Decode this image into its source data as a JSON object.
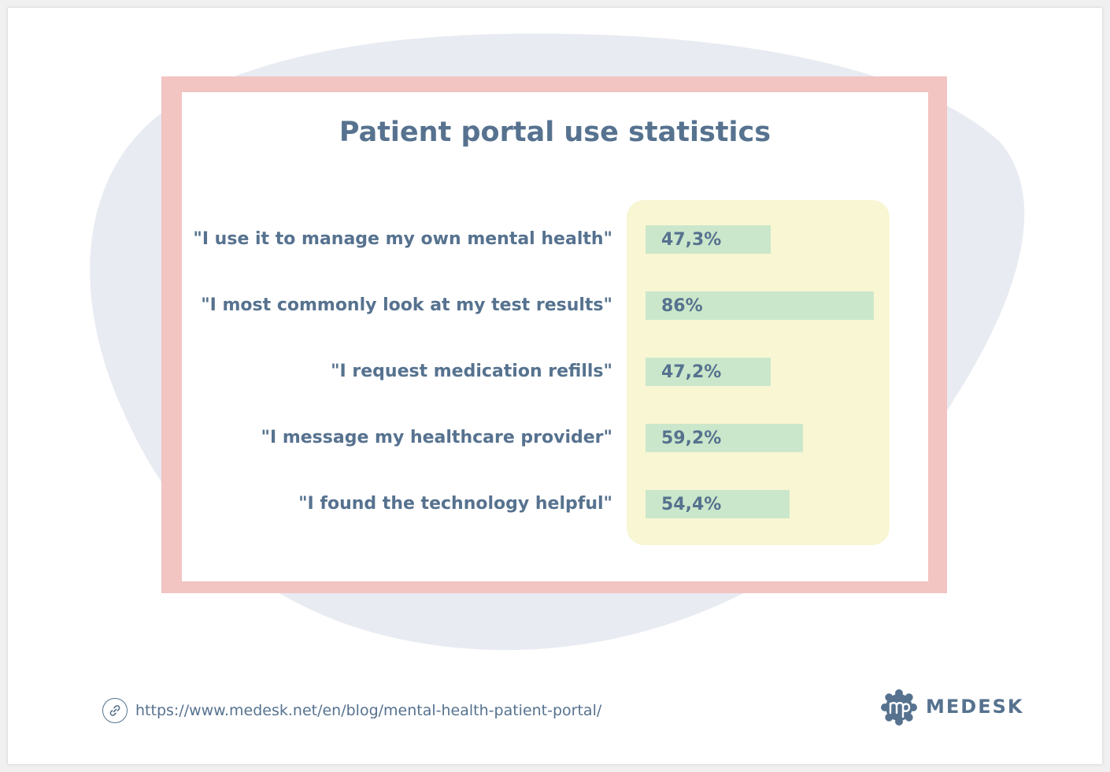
{
  "chart_data": {
    "type": "bar",
    "orientation": "horizontal",
    "title": "Patient portal use statistics",
    "categories": [
      "\"I use it to manage my own mental health\"",
      "\"I most commonly look at my test results\"",
      "\"I request medication refills\"",
      "\"I message my healthcare provider\"",
      "\"I found the technology helpful\""
    ],
    "values": [
      47.3,
      86,
      47.2,
      59.2,
      54.4
    ],
    "value_labels": [
      "47,3%",
      "86%",
      "47,2%",
      "59,2%",
      "54,4%"
    ],
    "xlim": [
      0,
      100
    ],
    "grid": false,
    "colors": {
      "bar": "#cbe7cb",
      "panel": "#f8f6d3",
      "frame": "#f2c4c2",
      "text": "#56728f",
      "background_blob": "#e8ebf1"
    }
  },
  "footer": {
    "url": "https://www.medesk.net/en/blog/mental-health-patient-portal/",
    "link_icon": "link-icon"
  },
  "logo": {
    "text": "MEDESK",
    "mark_icon": "medesk-logo-icon"
  }
}
